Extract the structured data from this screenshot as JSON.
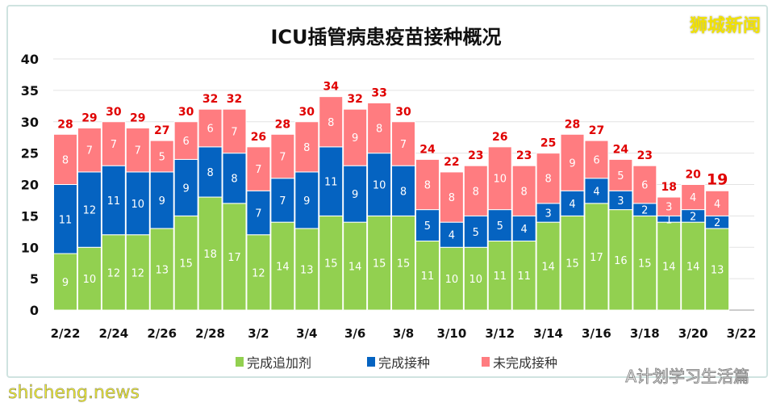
{
  "watermarks": {
    "top_right": "狮城新闻",
    "bottom_right": "A计划学习生活篇",
    "bottom_left": "shicheng.news"
  },
  "chart_data": {
    "type": "bar",
    "stacked": true,
    "title": "ICU插管病患疫苗接种概况",
    "categories": [
      "2/22",
      "2/23",
      "2/24",
      "2/25",
      "2/26",
      "2/27",
      "2/28",
      "3/1",
      "3/2",
      "3/3",
      "3/4",
      "3/5",
      "3/6",
      "3/7",
      "3/8",
      "3/9",
      "3/10",
      "3/11",
      "3/12",
      "3/13",
      "3/14",
      "3/15",
      "3/16",
      "3/17",
      "3/18",
      "3/19",
      "3/20",
      "3/21"
    ],
    "x_tick_labels": [
      "2/22",
      "2/24",
      "2/26",
      "2/28",
      "3/2",
      "3/4",
      "3/6",
      "3/8",
      "3/10",
      "3/12",
      "3/14",
      "3/16",
      "3/18",
      "3/20",
      "3/22"
    ],
    "series": [
      {
        "name": "完成追加剂",
        "color": "#92d050",
        "values": [
          9,
          10,
          12,
          12,
          13,
          15,
          18,
          17,
          12,
          14,
          13,
          15,
          14,
          15,
          15,
          11,
          10,
          10,
          11,
          11,
          14,
          15,
          17,
          16,
          15,
          14,
          14,
          13
        ]
      },
      {
        "name": "完成接种",
        "color": "#0563c1",
        "values": [
          11,
          12,
          11,
          10,
          9,
          9,
          8,
          8,
          7,
          7,
          9,
          11,
          9,
          10,
          8,
          5,
          4,
          5,
          5,
          4,
          3,
          4,
          4,
          3,
          2,
          1,
          2,
          2
        ]
      },
      {
        "name": "未完成接种",
        "color": "#ff7c80",
        "values": [
          8,
          7,
          7,
          7,
          5,
          6,
          6,
          7,
          7,
          7,
          8,
          8,
          9,
          8,
          7,
          8,
          8,
          8,
          10,
          8,
          8,
          9,
          6,
          5,
          6,
          3,
          4,
          4
        ]
      }
    ],
    "totals": [
      28,
      29,
      30,
      29,
      27,
      30,
      32,
      32,
      26,
      28,
      30,
      34,
      32,
      33,
      30,
      24,
      22,
      23,
      26,
      23,
      25,
      28,
      27,
      24,
      23,
      18,
      20,
      19
    ],
    "total_label_color": "#e00000",
    "ylim": [
      0,
      40
    ],
    "yticks": [
      "0",
      "5",
      "10",
      "15",
      "20",
      "25",
      "30",
      "35",
      "40"
    ],
    "grid": true,
    "legend": "bottom"
  }
}
